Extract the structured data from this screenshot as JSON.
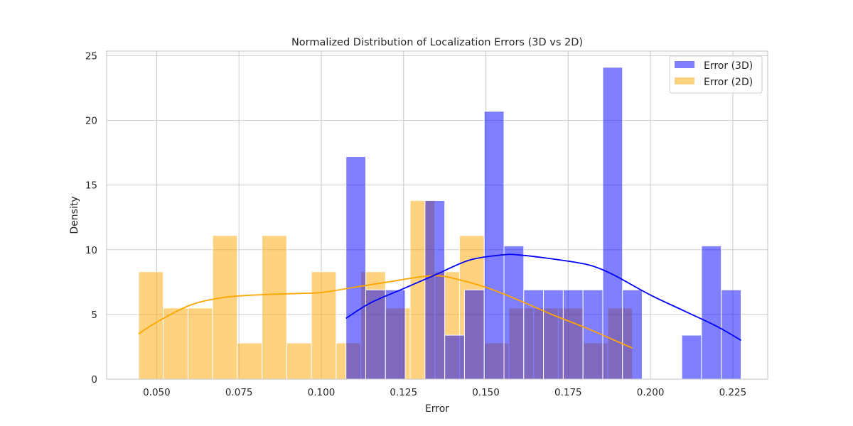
{
  "chart_data": {
    "type": "histogram",
    "title": "Normalized Distribution of Localization Errors (3D vs 2D)",
    "xlabel": "Error",
    "ylabel": "Density",
    "xlim": [
      0.0348,
      0.2356
    ],
    "ylim": [
      0,
      25.35
    ],
    "xticks": [
      0.05,
      0.075,
      0.1,
      0.125,
      0.15,
      0.175,
      0.2,
      0.225
    ],
    "xtick_labels": [
      "0.050",
      "0.075",
      "0.100",
      "0.125",
      "0.150",
      "0.175",
      "0.200",
      "0.225"
    ],
    "yticks": [
      0,
      5,
      10,
      15,
      20,
      25
    ],
    "ytick_labels": [
      "0",
      "5",
      "10",
      "15",
      "20",
      "25"
    ],
    "grid": true,
    "legend_position": "upper right",
    "series": [
      {
        "name": "Error (3D)",
        "color": "#0000ff",
        "fill_opacity": 0.5,
        "bin_edges": [
          0.1075,
          0.1135,
          0.1195,
          0.1255,
          0.1315,
          0.1375,
          0.1435,
          0.1495,
          0.1555,
          0.1615,
          0.1675,
          0.1735,
          0.1795,
          0.1855,
          0.1915,
          0.1975,
          0.2035,
          0.2095,
          0.2155,
          0.2215,
          0.2275
        ],
        "densities": [
          17.2,
          6.9,
          6.9,
          0,
          13.8,
          3.4,
          6.9,
          20.7,
          10.3,
          6.9,
          6.9,
          6.9,
          6.9,
          24.1,
          6.9,
          0,
          0,
          3.4,
          10.3,
          6.9
        ],
        "kde": {
          "x": [
            0.1075,
            0.115,
            0.125,
            0.135,
            0.145,
            0.155,
            0.16,
            0.17,
            0.18,
            0.185,
            0.19,
            0.2,
            0.21,
            0.22,
            0.2275
          ],
          "y": [
            4.7,
            5.9,
            7.0,
            8.1,
            9.2,
            9.6,
            9.6,
            9.3,
            8.9,
            8.5,
            7.9,
            6.5,
            5.3,
            4.1,
            3.0
          ]
        }
      },
      {
        "name": "Error (2D)",
        "color": "#ffa500",
        "fill_opacity": 0.5,
        "bin_edges": [
          0.0445,
          0.052,
          0.0595,
          0.067,
          0.0745,
          0.082,
          0.0895,
          0.097,
          0.1045,
          0.112,
          0.1195,
          0.127,
          0.1345,
          0.142,
          0.1495,
          0.157,
          0.1645,
          0.172,
          0.1795,
          0.187,
          0.1945
        ],
        "densities": [
          8.3,
          5.5,
          5.5,
          11.1,
          2.8,
          11.1,
          2.8,
          8.3,
          2.8,
          8.3,
          5.5,
          13.8,
          8.3,
          11.1,
          2.8,
          5.5,
          5.5,
          5.5,
          2.8,
          5.5
        ],
        "kde": {
          "x": [
            0.0445,
            0.05,
            0.06,
            0.07,
            0.08,
            0.09,
            0.1,
            0.11,
            0.12,
            0.13,
            0.135,
            0.14,
            0.15,
            0.16,
            0.17,
            0.18,
            0.19,
            0.1945
          ],
          "y": [
            3.5,
            4.4,
            5.7,
            6.3,
            6.5,
            6.6,
            6.7,
            7.1,
            7.5,
            7.9,
            8.0,
            7.8,
            7.1,
            6.1,
            5.0,
            4.0,
            2.9,
            2.4
          ]
        }
      }
    ]
  }
}
